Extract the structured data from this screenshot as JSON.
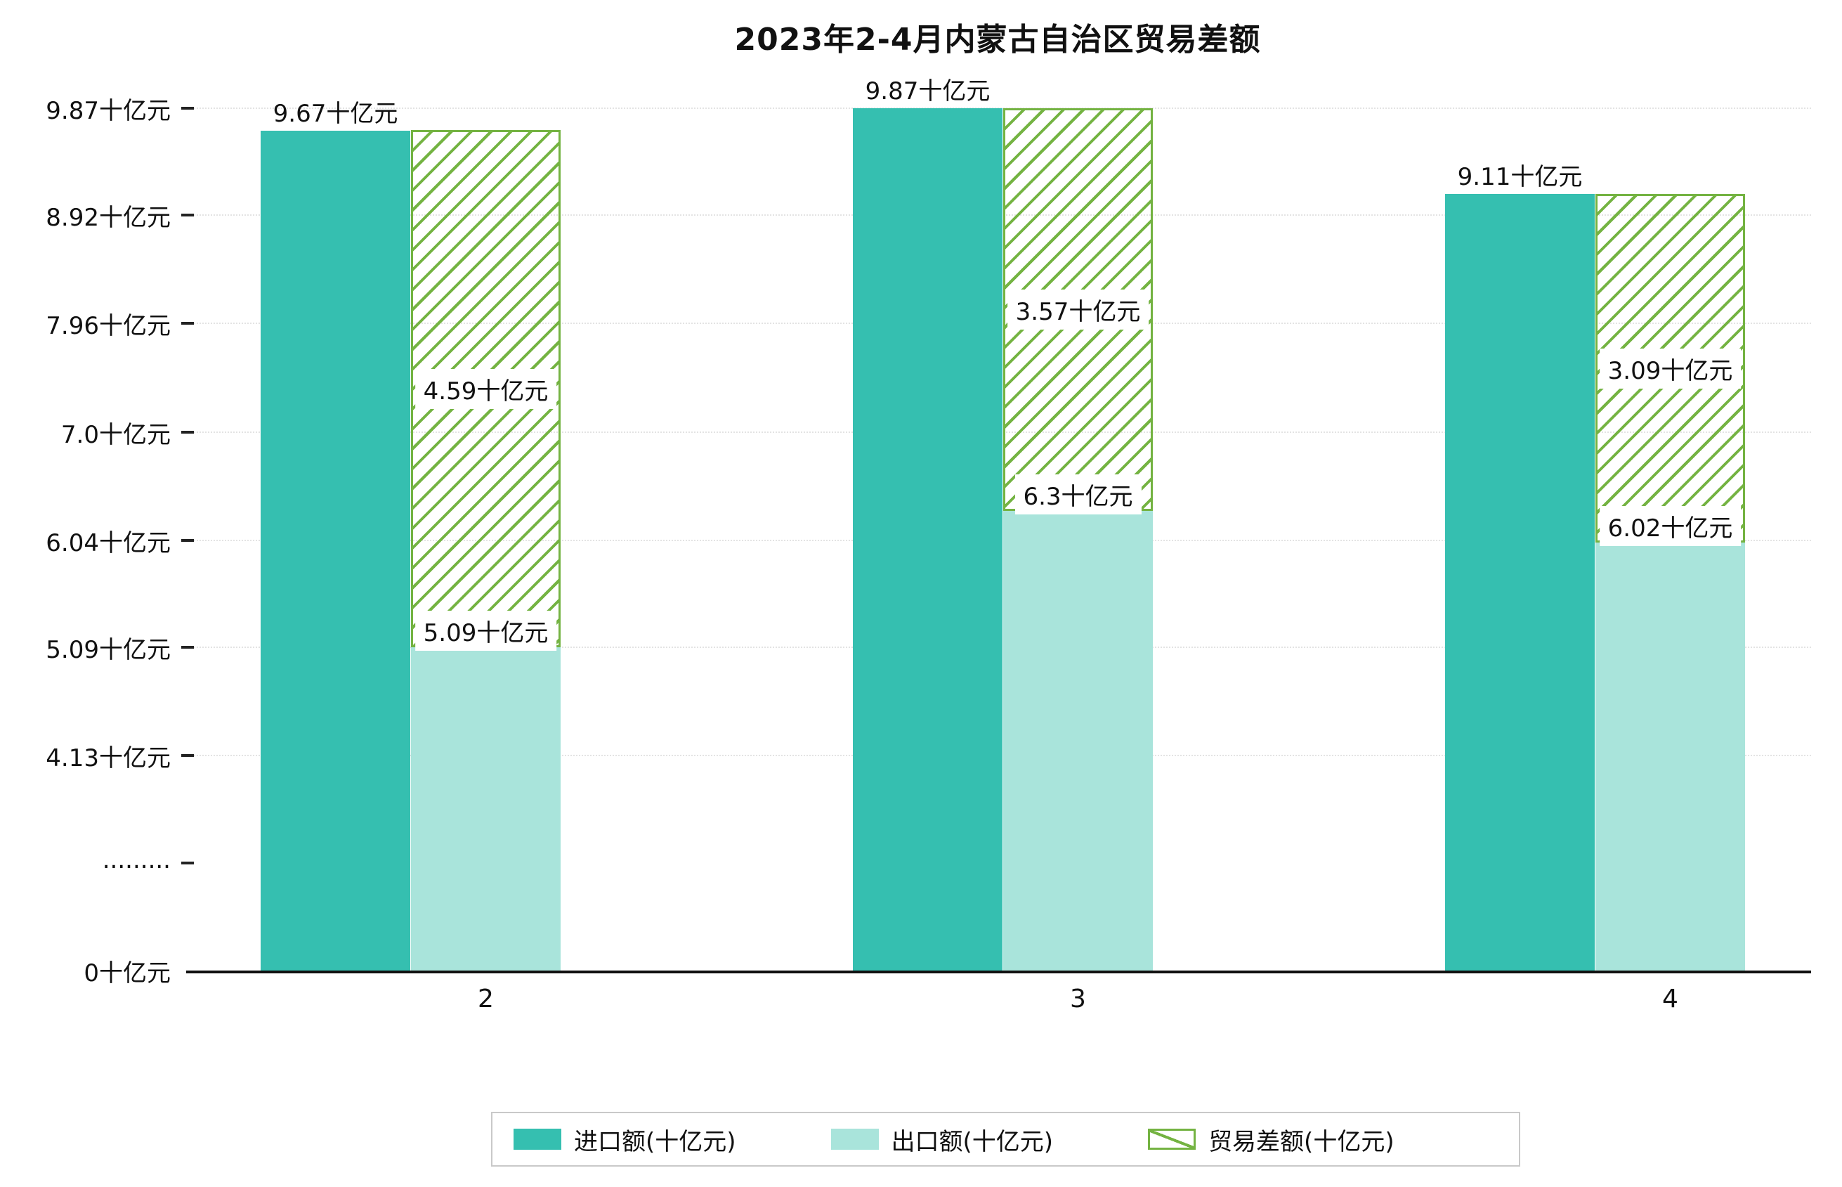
{
  "title": "2023年2-4月内蒙古自治区贸易差额",
  "colors": {
    "import": "#35bfb0",
    "export": "#a9e4db",
    "balance": "#74b342",
    "axis": "#111111",
    "grid": "#e3e3e3"
  },
  "legend": [
    {
      "key": "import",
      "label": "进口额(十亿元)"
    },
    {
      "key": "export",
      "label": "出口额(十亿元)"
    },
    {
      "key": "balance",
      "label": "贸易差额(十亿元)"
    }
  ],
  "y_axis": {
    "unit": "十亿元",
    "ticks": [
      {
        "label": "9.87十亿元",
        "value": 9.87
      },
      {
        "label": "8.92十亿元",
        "value": 8.92
      },
      {
        "label": "7.96十亿元",
        "value": 7.96
      },
      {
        "label": "7.0十亿元",
        "value": 7.0
      },
      {
        "label": "6.04十亿元",
        "value": 6.04
      },
      {
        "label": "5.09十亿元",
        "value": 5.09
      },
      {
        "label": "4.13十亿元",
        "value": 4.13
      },
      {
        "label": ".........",
        "value": null
      },
      {
        "label": "0十亿元",
        "value": 0
      }
    ]
  },
  "chart_data": {
    "type": "bar",
    "title": "2023年2-4月内蒙古自治区贸易差额",
    "xlabel": "",
    "ylabel": "十亿元",
    "categories": [
      "2",
      "3",
      "4"
    ],
    "series": [
      {
        "name": "进口额(十亿元)",
        "values": [
          9.67,
          9.87,
          9.11
        ]
      },
      {
        "name": "出口额(十亿元)",
        "values": [
          5.09,
          6.3,
          6.02
        ]
      },
      {
        "name": "贸易差额(十亿元)",
        "values": [
          4.59,
          3.57,
          3.09
        ]
      }
    ],
    "bar_labels": {
      "import": [
        "9.67十亿元",
        "9.87十亿元",
        "9.11十亿元"
      ],
      "export": [
        "5.09十亿元",
        "6.3十亿元",
        "6.02十亿元"
      ],
      "balance": [
        "4.59十亿元",
        "3.57十亿元",
        "3.09十亿元"
      ]
    },
    "notes": "balance bar is floating, stacked from export value up to export+balance; y axis has a break between 0 and 4.13",
    "axis_break": true,
    "grid": "dotted-horizontal",
    "legend_position": "bottom"
  }
}
